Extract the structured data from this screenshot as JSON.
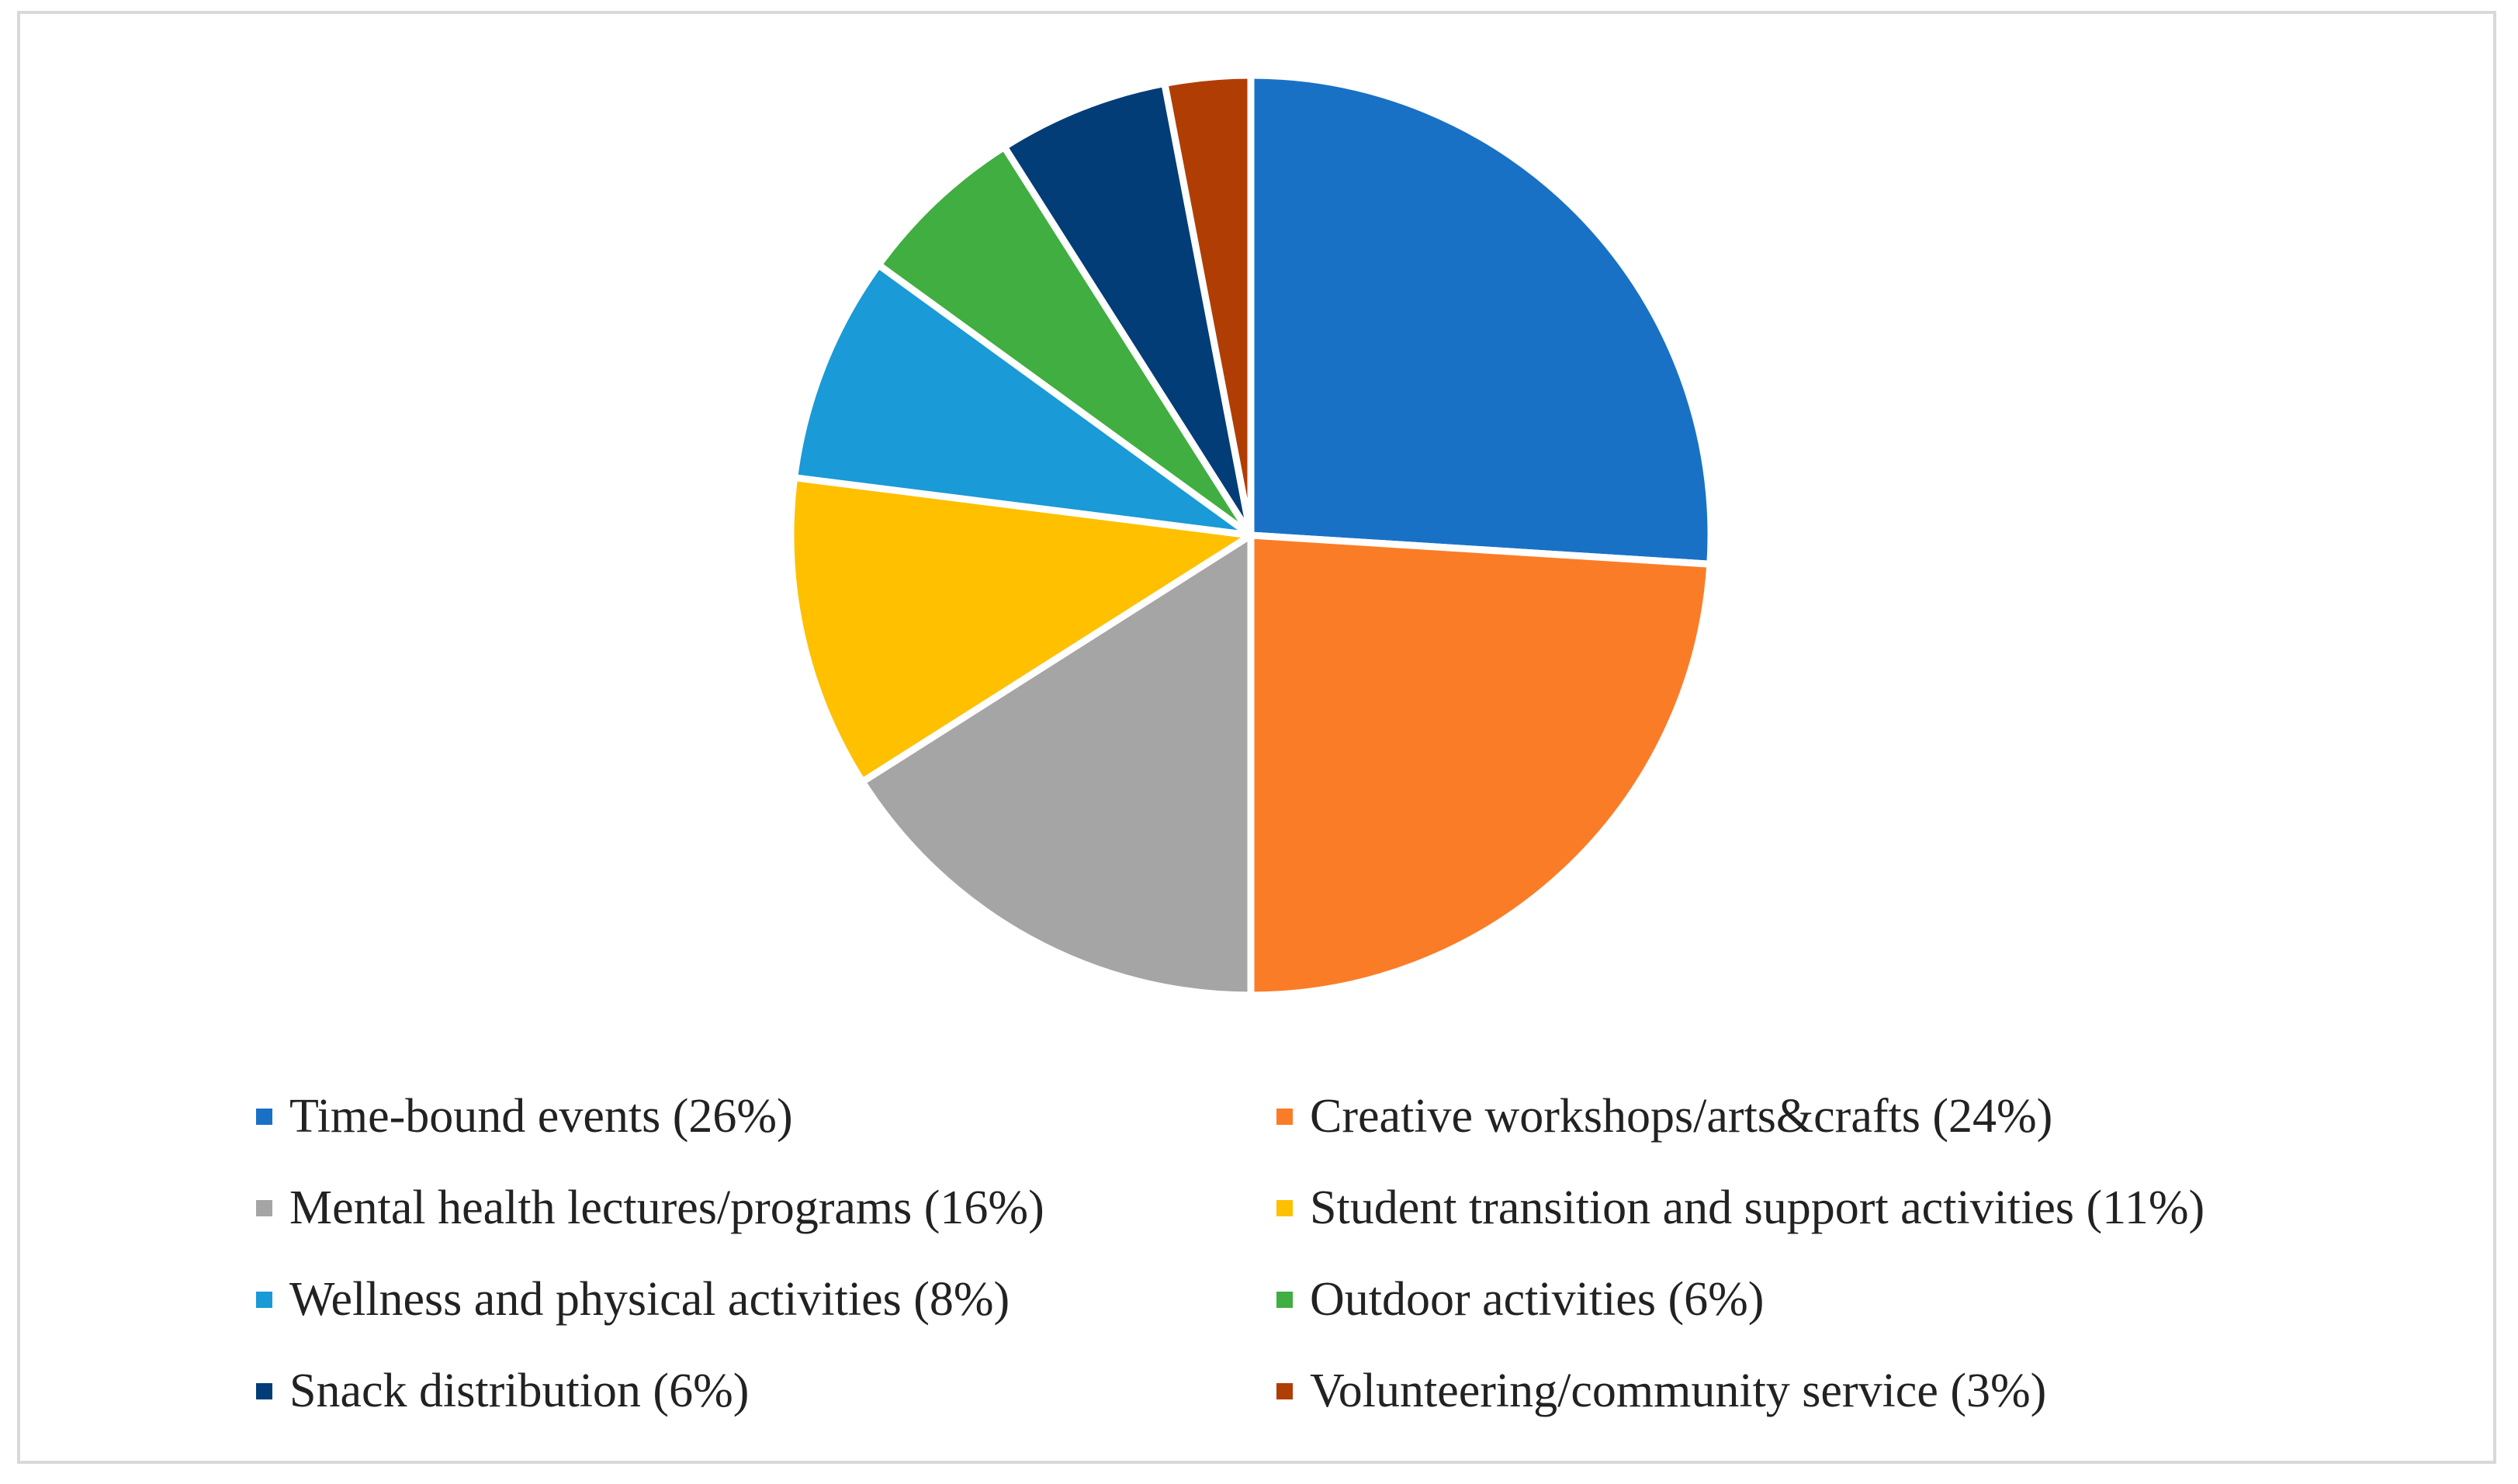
{
  "chart_data": {
    "type": "pie",
    "title": "",
    "legend_position": "bottom",
    "start_angle": "12 o'clock",
    "direction": "clockwise",
    "slices": [
      {
        "label": "Time-bound events (26%)",
        "value": 26,
        "color": "#1971c6"
      },
      {
        "label": "Creative workshops/arts&crafts (24%)",
        "value": 24,
        "color": "#fb7c26"
      },
      {
        "label": "Mental health lectures/programs (16%)",
        "value": 16,
        "color": "#a5a5a5"
      },
      {
        "label": "Student transition and support activities (11%)",
        "value": 11,
        "color": "#ffc000"
      },
      {
        "label": "Wellness and physical activities (8%)",
        "value": 8,
        "color": "#1a9ad6"
      },
      {
        "label": "Outdoor activities (6%)",
        "value": 6,
        "color": "#40ae40"
      },
      {
        "label": "Snack distribution (6%)",
        "value": 6,
        "color": "#023d77"
      },
      {
        "label": "Volunteering/community service (3%)",
        "value": 3,
        "color": "#b03e04"
      }
    ]
  }
}
